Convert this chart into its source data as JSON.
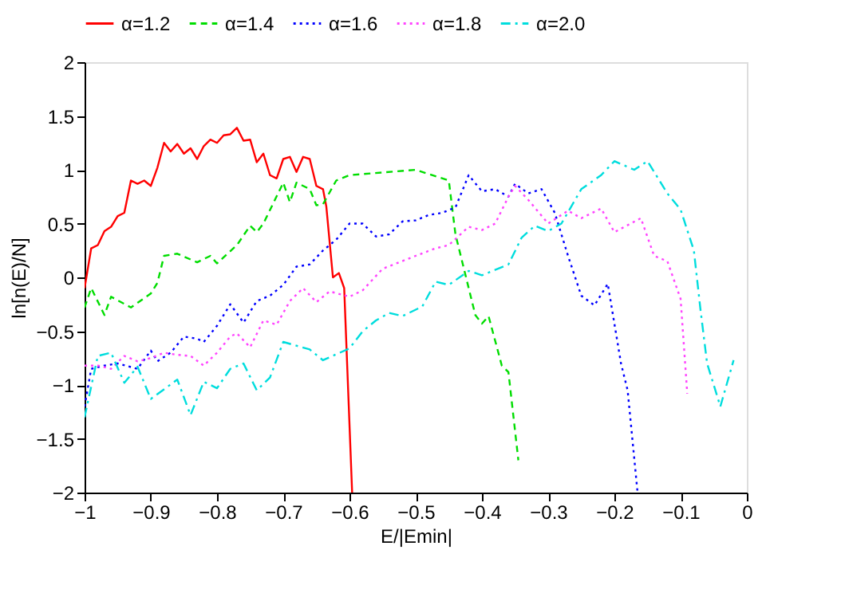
{
  "chart_data": {
    "type": "line",
    "xlabel": "E/|Emin|",
    "ylabel": "ln[n(E)/N]",
    "xlim": [
      -1,
      0
    ],
    "ylim": [
      -2,
      2
    ],
    "xticks": [
      -1,
      -0.9,
      -0.8,
      -0.7,
      -0.6,
      -0.5,
      -0.4,
      -0.3,
      -0.2,
      -0.1,
      0
    ],
    "yticks": [
      -2,
      -1.5,
      -1,
      -0.5,
      0,
      0.5,
      1,
      1.5,
      2
    ],
    "grid": false,
    "legend": "top",
    "marker": "none",
    "series": [
      {
        "name": "α=1.2",
        "color": "#ff0000",
        "line_style": "solid",
        "x": [
          -1,
          -0.99,
          -0.98,
          -0.97,
          -0.96,
          -0.95,
          -0.94,
          -0.93,
          -0.92,
          -0.91,
          -0.9,
          -0.89,
          -0.88,
          -0.87,
          -0.86,
          -0.85,
          -0.84,
          -0.83,
          -0.82,
          -0.81,
          -0.8,
          -0.79,
          -0.78,
          -0.77,
          -0.76,
          -0.75,
          -0.74,
          -0.73,
          -0.72,
          -0.71,
          -0.7,
          -0.69,
          -0.68,
          -0.67,
          -0.66,
          -0.65,
          -0.64,
          -0.635,
          -0.625,
          -0.616,
          -0.608,
          -0.596
        ],
        "values": [
          -0.1,
          0.27,
          0.3,
          0.43,
          0.47,
          0.57,
          0.6,
          0.9,
          0.87,
          0.9,
          0.85,
          1.02,
          1.25,
          1.17,
          1.24,
          1.15,
          1.2,
          1.1,
          1.22,
          1.28,
          1.25,
          1.32,
          1.33,
          1.39,
          1.27,
          1.28,
          1.07,
          1.15,
          0.95,
          0.92,
          1.1,
          1.12,
          0.98,
          1.12,
          1.1,
          0.85,
          0.82,
          0.66,
          0,
          0.04,
          -0.1,
          -2
        ]
      },
      {
        "name": "α=1.4",
        "color": "#00dd00",
        "line_style": "dashed",
        "x": [
          -1,
          -0.99,
          -0.97,
          -0.96,
          -0.93,
          -0.9,
          -0.89,
          -0.88,
          -0.86,
          -0.83,
          -0.81,
          -0.8,
          -0.77,
          -0.75,
          -0.74,
          -0.73,
          -0.7,
          -0.69,
          -0.68,
          -0.66,
          -0.65,
          -0.64,
          -0.62,
          -0.6,
          -0.5,
          -0.45,
          -0.44,
          -0.43,
          -0.41,
          -0.4,
          -0.39,
          -0.37,
          -0.36,
          -0.345
        ],
        "values": [
          -0.28,
          -0.1,
          -0.35,
          -0.18,
          -0.28,
          -0.15,
          -0.05,
          0.2,
          0.22,
          0.14,
          0.2,
          0.13,
          0.3,
          0.48,
          0.42,
          0.5,
          0.88,
          0.7,
          0.88,
          0.82,
          0.67,
          0.68,
          0.9,
          0.95,
          1.0,
          0.9,
          0.4,
          0.15,
          -0.35,
          -0.43,
          -0.36,
          -0.82,
          -0.88,
          -1.7
        ]
      },
      {
        "name": "α=1.6",
        "color": "#0000ff",
        "line_style": "dotted",
        "x": [
          -1,
          -0.99,
          -0.97,
          -0.95,
          -0.92,
          -0.9,
          -0.89,
          -0.87,
          -0.85,
          -0.83,
          -0.82,
          -0.8,
          -0.78,
          -0.76,
          -0.74,
          -0.72,
          -0.7,
          -0.68,
          -0.66,
          -0.64,
          -0.62,
          -0.6,
          -0.58,
          -0.56,
          -0.54,
          -0.52,
          -0.5,
          -0.48,
          -0.46,
          -0.44,
          -0.42,
          -0.4,
          -0.38,
          -0.36,
          -0.35,
          -0.33,
          -0.31,
          -0.29,
          -0.27,
          -0.25,
          -0.23,
          -0.21,
          -0.19,
          -0.18,
          -0.165
        ],
        "values": [
          -1.2,
          -0.85,
          -0.82,
          -0.8,
          -0.85,
          -0.68,
          -0.78,
          -0.7,
          -0.55,
          -0.57,
          -0.6,
          -0.45,
          -0.25,
          -0.42,
          -0.22,
          -0.17,
          -0.07,
          0.1,
          0.12,
          0.25,
          0.35,
          0.5,
          0.5,
          0.38,
          0.4,
          0.52,
          0.53,
          0.58,
          0.6,
          0.65,
          0.95,
          0.8,
          0.82,
          0.75,
          0.87,
          0.78,
          0.82,
          0.6,
          0.2,
          -0.17,
          -0.26,
          -0.06,
          -0.8,
          -1.05,
          -2
        ]
      },
      {
        "name": "α=1.8",
        "color": "#ff44ff",
        "line_style": "dotted",
        "x": [
          -1,
          -0.98,
          -0.96,
          -0.94,
          -0.92,
          -0.9,
          -0.88,
          -0.86,
          -0.84,
          -0.82,
          -0.8,
          -0.78,
          -0.77,
          -0.75,
          -0.73,
          -0.71,
          -0.69,
          -0.67,
          -0.65,
          -0.63,
          -0.6,
          -0.58,
          -0.55,
          -0.5,
          -0.47,
          -0.45,
          -0.42,
          -0.4,
          -0.38,
          -0.36,
          -0.35,
          -0.33,
          -0.3,
          -0.27,
          -0.25,
          -0.22,
          -0.2,
          -0.16,
          -0.14,
          -0.12,
          -0.1,
          -0.09
        ],
        "values": [
          -0.82,
          -0.82,
          -0.85,
          -0.73,
          -0.78,
          -0.75,
          -0.7,
          -0.72,
          -0.73,
          -0.82,
          -0.7,
          -0.55,
          -0.52,
          -0.65,
          -0.4,
          -0.44,
          -0.22,
          -0.1,
          -0.23,
          -0.13,
          -0.18,
          -0.12,
          0.08,
          0.2,
          0.27,
          0.3,
          0.47,
          0.44,
          0.5,
          0.75,
          0.85,
          0.72,
          0.5,
          0.62,
          0.55,
          0.64,
          0.42,
          0.55,
          0.2,
          0.15,
          -0.2,
          -1.08
        ]
      },
      {
        "name": "α=2.0",
        "color": "#00dddd",
        "line_style": "dashdot",
        "x": [
          -1,
          -0.98,
          -0.96,
          -0.94,
          -0.92,
          -0.9,
          -0.86,
          -0.84,
          -0.82,
          -0.8,
          -0.78,
          -0.76,
          -0.74,
          -0.72,
          -0.7,
          -0.66,
          -0.64,
          -0.6,
          -0.58,
          -0.56,
          -0.54,
          -0.52,
          -0.49,
          -0.47,
          -0.45,
          -0.42,
          -0.4,
          -0.36,
          -0.34,
          -0.32,
          -0.3,
          -0.28,
          -0.25,
          -0.22,
          -0.2,
          -0.17,
          -0.15,
          -0.12,
          -0.1,
          -0.08,
          -0.07,
          -0.06,
          -0.04,
          -0.02
        ],
        "values": [
          -1.3,
          -0.73,
          -0.7,
          -0.98,
          -0.83,
          -1.13,
          -0.95,
          -1.28,
          -0.97,
          -1.03,
          -0.85,
          -0.8,
          -1.05,
          -0.93,
          -0.6,
          -0.67,
          -0.77,
          -0.66,
          -0.5,
          -0.4,
          -0.33,
          -0.36,
          -0.27,
          -0.04,
          -0.07,
          0.06,
          0.02,
          0.12,
          0.37,
          0.48,
          0.43,
          0.5,
          0.82,
          0.95,
          1.08,
          1.0,
          1.08,
          0.78,
          0.63,
          0.25,
          -0.3,
          -0.8,
          -1.2,
          -0.77
        ]
      }
    ]
  }
}
